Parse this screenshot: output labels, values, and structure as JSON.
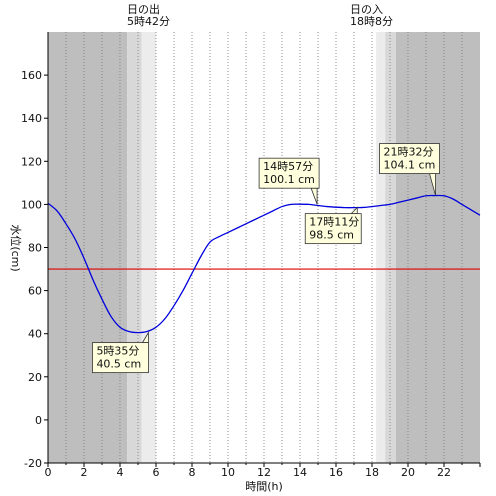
{
  "chart_data": {
    "type": "line",
    "xlabel": "時間(h)",
    "ylabel": "水位(cm)",
    "xlim": [
      0,
      24
    ],
    "ylim": [
      -20,
      180
    ],
    "x_ticks": [
      0,
      2,
      4,
      6,
      8,
      10,
      12,
      14,
      16,
      18,
      20,
      22
    ],
    "y_ticks": [
      -20,
      0,
      20,
      40,
      60,
      80,
      100,
      120,
      140,
      160
    ],
    "grid": "vertical dotted every 1h",
    "sunrise": {
      "label": "日の出",
      "time": "5時42分",
      "hour": 5.7
    },
    "sunset": {
      "label": "日の入",
      "time": "18時8分",
      "hour": 18.13
    },
    "reference_level": {
      "value": 70,
      "color": "#dd0000"
    },
    "series": [
      {
        "color": "#0000dd",
        "x": [
          0,
          0.5,
          1,
          1.5,
          2,
          2.5,
          3,
          3.5,
          4,
          4.5,
          5,
          5.5,
          6,
          6.5,
          7,
          7.5,
          8,
          8.5,
          9,
          9.5,
          10,
          10.5,
          11,
          11.5,
          12,
          12.5,
          13,
          13.5,
          14,
          14.5,
          15,
          15.5,
          16,
          16.5,
          17,
          17.5,
          18,
          18.5,
          19,
          19.5,
          20,
          20.5,
          21,
          21.5,
          22,
          22.5,
          23,
          23.5,
          24
        ],
        "values": [
          100.5,
          97,
          91,
          84,
          75,
          65,
          56,
          48,
          43,
          41,
          40.5,
          41,
          43,
          47,
          53,
          60,
          68,
          76,
          82.5,
          85,
          87,
          89,
          91,
          93,
          95,
          97,
          99,
          100,
          100.1,
          100,
          99.5,
          99,
          98.7,
          98.5,
          98.5,
          98.6,
          99,
          99.5,
          100,
          101,
          102,
          103,
          104,
          104.1,
          104,
          102.5,
          100,
          97.5,
          95
        ]
      }
    ],
    "annotations": [
      {
        "line1": "5時35分",
        "line2": "40.5 cm",
        "x": 5.58,
        "y": 40.5
      },
      {
        "line1": "14時57分",
        "line2": "100.1 cm",
        "x": 14.95,
        "y": 100.1
      },
      {
        "line1": "17時11分",
        "line2": "98.5 cm",
        "x": 17.18,
        "y": 98.5
      },
      {
        "line1": "21時32分",
        "line2": "104.1 cm",
        "x": 21.53,
        "y": 104.1
      }
    ],
    "colors": {
      "night": "#bebebe",
      "twilight": "#d8d8d8",
      "dawn_light": "#ececec",
      "day": "#ffffff",
      "annotation_bg": "#ffffdd"
    }
  }
}
